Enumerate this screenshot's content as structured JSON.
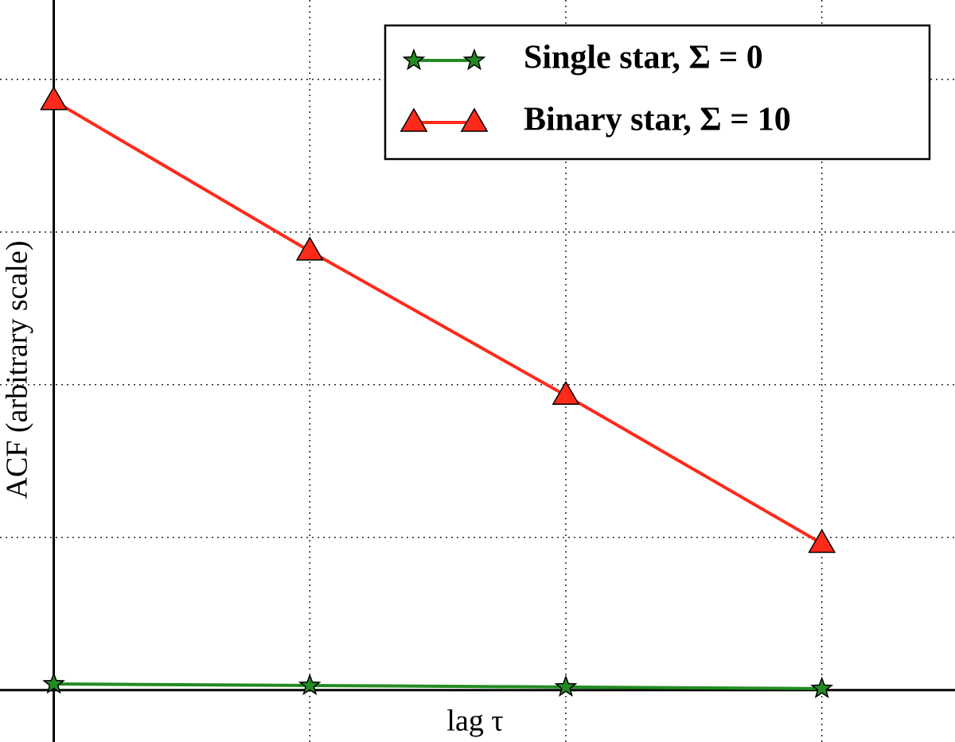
{
  "chart_data": {
    "type": "line",
    "x_label": "lag τ",
    "y_label": "ACF (arbitrary scale)",
    "x": [
      0,
      1,
      2,
      3
    ],
    "series": [
      {
        "name": "Single star, Σ = 0",
        "color": "#228b22",
        "marker": "star",
        "values": [
          0.04,
          0.03,
          0.02,
          0.01
        ]
      },
      {
        "name": "Binary star, Σ = 10",
        "color": "#ff2a1a",
        "marker": "triangle",
        "values": [
          3.86,
          2.875,
          1.93,
          0.96
        ]
      }
    ],
    "xlim": [
      -0.21,
      3.52
    ],
    "ylim": [
      -0.34,
      4.52
    ],
    "xticks": [
      1,
      2,
      3
    ],
    "yticks": [
      1,
      2,
      3,
      4
    ],
    "grid": true,
    "legend": "upper right"
  }
}
